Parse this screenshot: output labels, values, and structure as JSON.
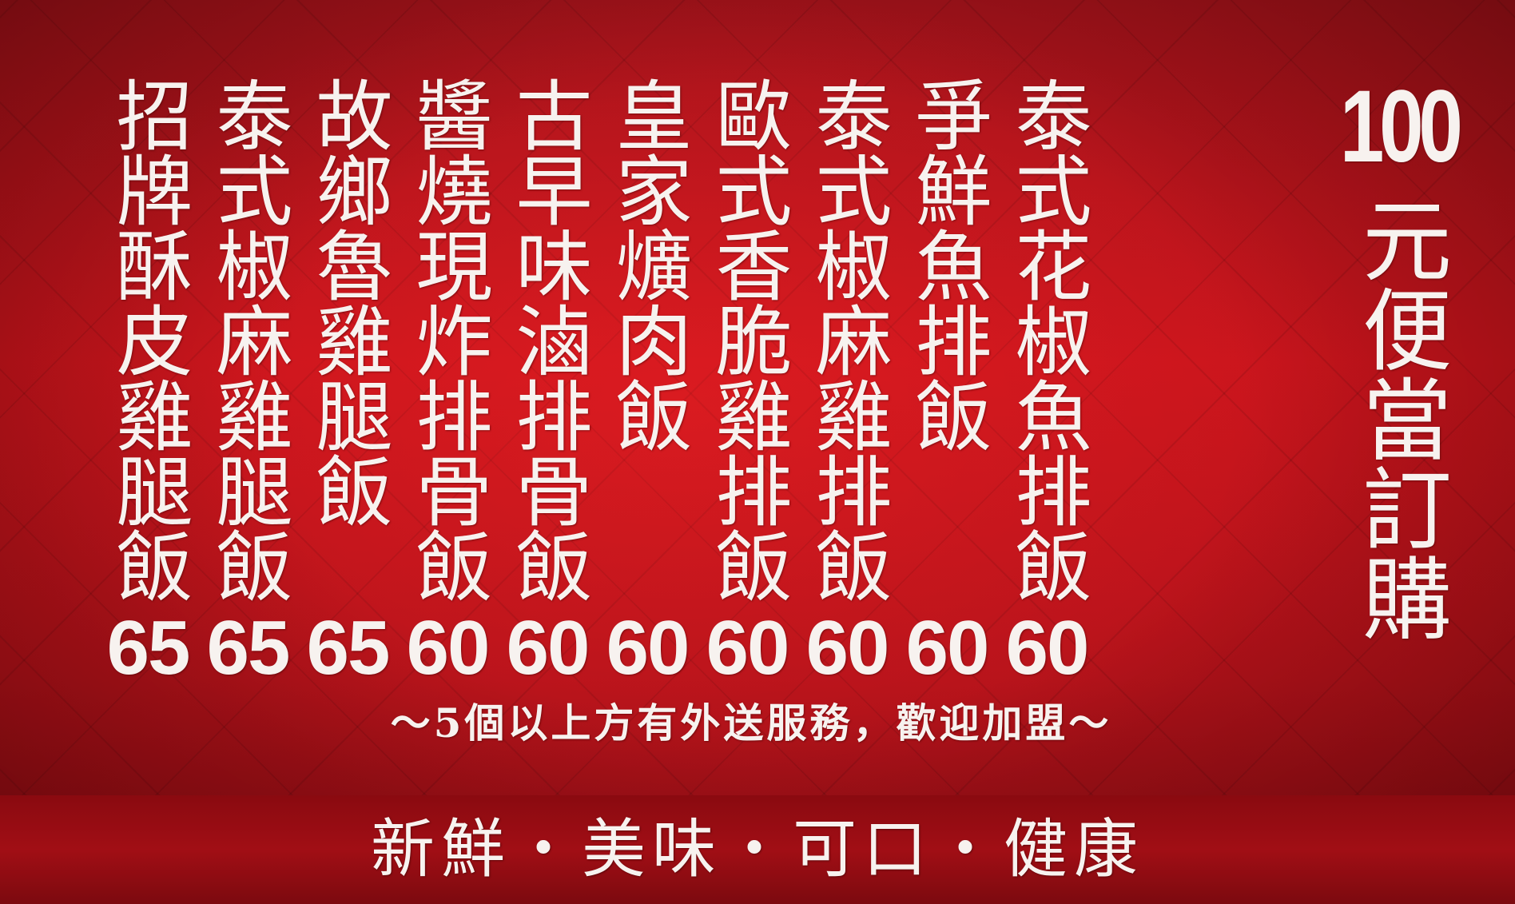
{
  "header": {
    "number": "100",
    "text": "元便當訂購"
  },
  "menu": [
    {
      "name": "招牌酥皮雞腿飯",
      "price": "65"
    },
    {
      "name": "泰式椒麻雞腿飯",
      "price": "65"
    },
    {
      "name": "故鄉魯雞腿飯",
      "price": "65"
    },
    {
      "name": "醬燒現炸排骨飯",
      "price": "60"
    },
    {
      "name": "古早味滷排骨飯",
      "price": "60"
    },
    {
      "name": "皇家爌肉飯",
      "price": "60"
    },
    {
      "name": "歐式香脆雞排飯",
      "price": "60"
    },
    {
      "name": "泰式椒麻雞排飯",
      "price": "60"
    },
    {
      "name": "爭鮮魚排飯",
      "price": "60"
    },
    {
      "name": "泰式花椒魚排飯",
      "price": "60"
    }
  ],
  "delivery_note": "～5個以上方有外送服務，歡迎加盟～",
  "slogan": "新鮮・美味・可口・健康",
  "colors": {
    "background": "#c8141c",
    "text": "#f7f2ef"
  }
}
